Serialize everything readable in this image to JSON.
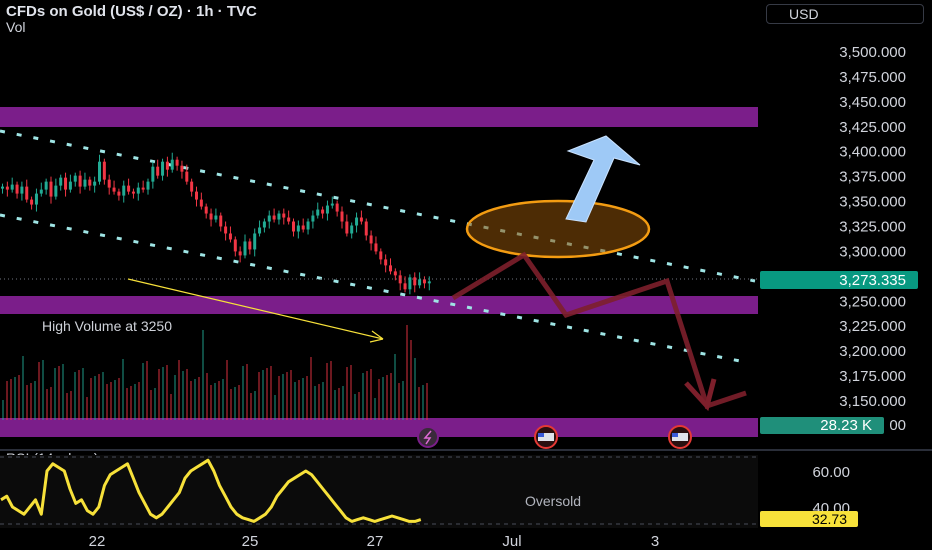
{
  "header": {
    "title": "CFDs on Gold (US$ / OZ) · 1h · TVC",
    "vol_label": "Vol",
    "currency": "USD"
  },
  "chart_data": [
    {
      "type": "candlestick",
      "title": "CFDs on Gold (US$ / OZ) · 1h · TVC",
      "y_axis": {
        "ticks": [
          "3,500.000",
          "3,475.000",
          "3,450.000",
          "3,425.000",
          "3,400.000",
          "3,375.000",
          "3,350.000",
          "3,325.000",
          "3,300.000",
          "3,250.000",
          "3,225.000",
          "3,200.000",
          "3,175.000",
          "3,150.000"
        ],
        "ylim": [
          3125,
          3525
        ]
      },
      "x_axis": {
        "ticks": [
          "22",
          "25",
          "27",
          "Jul",
          "3"
        ]
      },
      "close_path": [
        3365,
        3362,
        3367,
        3358,
        3365,
        3352,
        3347,
        3358,
        3362,
        3370,
        3355,
        3366,
        3374,
        3362,
        3370,
        3376,
        3365,
        3372,
        3366,
        3370,
        3390,
        3372,
        3364,
        3360,
        3356,
        3366,
        3360,
        3358,
        3364,
        3362,
        3370,
        3385,
        3376,
        3390,
        3382,
        3392,
        3386,
        3380,
        3370,
        3360,
        3352,
        3345,
        3338,
        3332,
        3336,
        3325,
        3318,
        3312,
        3300,
        3296,
        3310,
        3302,
        3318,
        3324,
        3330,
        3336,
        3332,
        3338,
        3334,
        3330,
        3320,
        3326,
        3322,
        3330,
        3336,
        3342,
        3338,
        3346,
        3348,
        3340,
        3330,
        3318,
        3326,
        3334,
        3330,
        3316,
        3308,
        3300,
        3292,
        3286,
        3280,
        3276,
        3268,
        3262,
        3274,
        3266,
        3272,
        3268,
        3270
      ],
      "last_price": "3,273.335",
      "volume_label": "28.23 K",
      "rsi": {
        "label": "RSI (14, close)",
        "ticks": [
          "60.00",
          "40.00"
        ],
        "oversold_label": "Oversold",
        "value_label": "32.73",
        "values": [
          44,
          46,
          40,
          38,
          36,
          40,
          44,
          36,
          60,
          64,
          62,
          60,
          50,
          42,
          44,
          38,
          36,
          40,
          52,
          58,
          60,
          62,
          64,
          56,
          48,
          42,
          36,
          34,
          36,
          40,
          44,
          48,
          56,
          60,
          62,
          64,
          66,
          60,
          52,
          46,
          40,
          36,
          34,
          33,
          32,
          34,
          36,
          40,
          46,
          50,
          54,
          56,
          58,
          60,
          58,
          54,
          50,
          46,
          42,
          38,
          34,
          32,
          33,
          34,
          33,
          32,
          33,
          34,
          35,
          34,
          33,
          32,
          32,
          33
        ]
      },
      "annotations": {
        "high_volume_text": "High Volume at 3250"
      }
    }
  ],
  "colors": {
    "up": "#22ab94",
    "down": "#f23645",
    "zone": "#7b1e8a",
    "channel": "#9fe5e5",
    "rsi_line": "#f7e13a",
    "last_price_bg": "#089981",
    "rsi_value_bg": "#f7e13a",
    "arrow_blue": "#9ec9f6",
    "ellipse": "#f39c12",
    "projection": "#7d1f2b"
  }
}
